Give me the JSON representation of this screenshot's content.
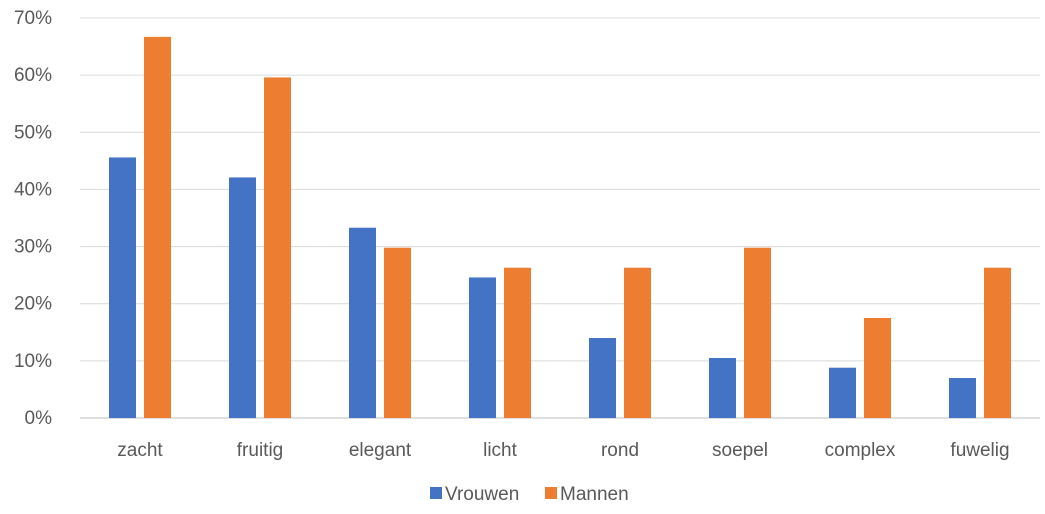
{
  "chart_data": {
    "type": "bar",
    "categories": [
      "zacht",
      "fruitig",
      "elegant",
      "licht",
      "rond",
      "soepel",
      "complex",
      "fuwelig"
    ],
    "series": [
      {
        "name": "Vrouwen",
        "color": "#4472C4",
        "values": [
          45.6,
          42.1,
          33.3,
          24.6,
          14.0,
          10.5,
          8.8,
          7.0
        ]
      },
      {
        "name": "Mannen",
        "color": "#ED7D31",
        "values": [
          66.7,
          59.6,
          29.8,
          26.3,
          26.3,
          29.8,
          17.5,
          26.3
        ]
      }
    ],
    "y_ticks": [
      "0%",
      "10%",
      "20%",
      "30%",
      "40%",
      "50%",
      "60%",
      "70%"
    ],
    "ylim": [
      0,
      70
    ],
    "grid": true,
    "legend_position": "bottom"
  }
}
